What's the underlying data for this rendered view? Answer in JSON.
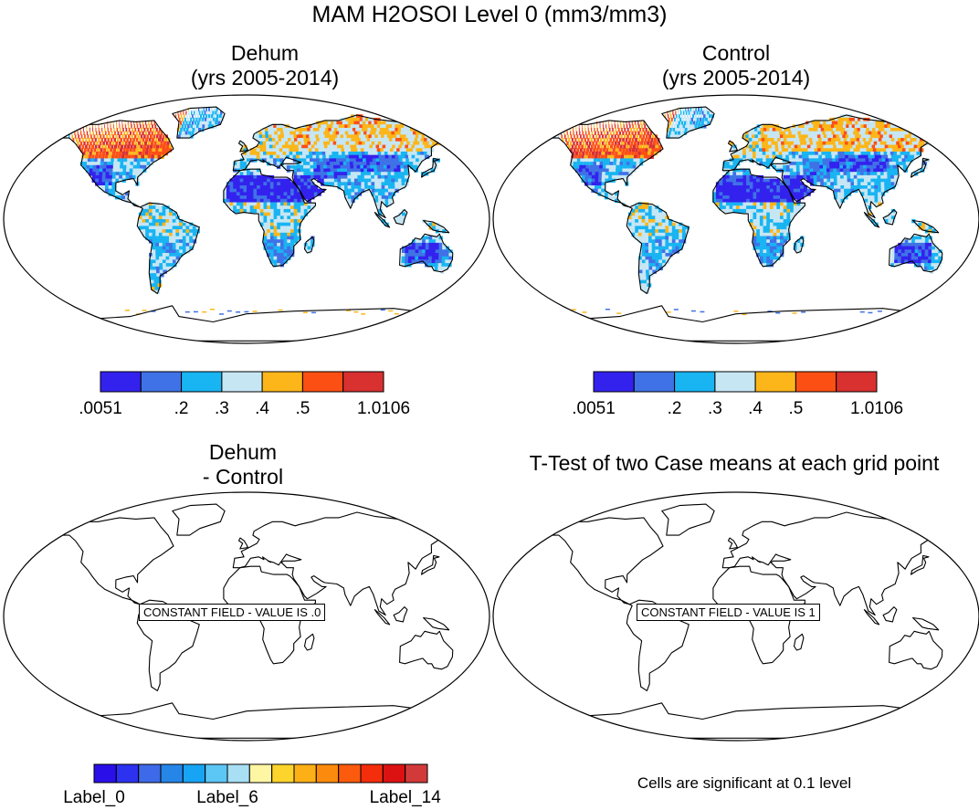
{
  "title": "MAM H2OSOI Level 0 (mm3/mm3)",
  "panels": [
    {
      "id": "dehum",
      "title_lines": [
        "Dehum",
        "(yrs 2005-2014)"
      ],
      "field": "filled",
      "seed": 7
    },
    {
      "id": "control",
      "title_lines": [
        "Control",
        "(yrs 2005-2014)"
      ],
      "field": "filled",
      "seed": 13
    },
    {
      "id": "diff",
      "title_lines": [
        "Dehum",
        "- Control"
      ],
      "field": "constant",
      "constant_label": "CONSTANT FIELD - VALUE IS .0"
    },
    {
      "id": "ttest",
      "title_lines": [
        "T-Test of two Case means at each grid point"
      ],
      "field": "constant",
      "constant_label": "CONSTANT FIELD - VALUE IS 1"
    }
  ],
  "colorbars": {
    "top": {
      "colors": [
        "#3322ee",
        "#3f72e6",
        "#19b4f2",
        "#c6e6f4",
        "#fcb61a",
        "#fc4f14",
        "#d93030"
      ],
      "labels": [
        ".0051",
        ".2",
        ".3",
        ".4",
        ".5",
        "1.0106"
      ],
      "label_boundaries": [
        0,
        2,
        3,
        4,
        5,
        7
      ]
    },
    "bottom": {
      "colors": [
        "#2a0fe8",
        "#2c32f0",
        "#3d6ae8",
        "#2586e8",
        "#17a4f5",
        "#5cc6f5",
        "#a8dff4",
        "#fff6a4",
        "#fcd42c",
        "#fcb016",
        "#fc8a0c",
        "#fc5a0c",
        "#f42d0c",
        "#dc1212",
        "#d23a3a"
      ],
      "labels": [
        "Label_0",
        "Label_6",
        "Label_14"
      ],
      "label_boundaries": [
        0,
        6,
        14
      ]
    }
  },
  "significance_note": "Cells are significant at 0.1 level"
}
